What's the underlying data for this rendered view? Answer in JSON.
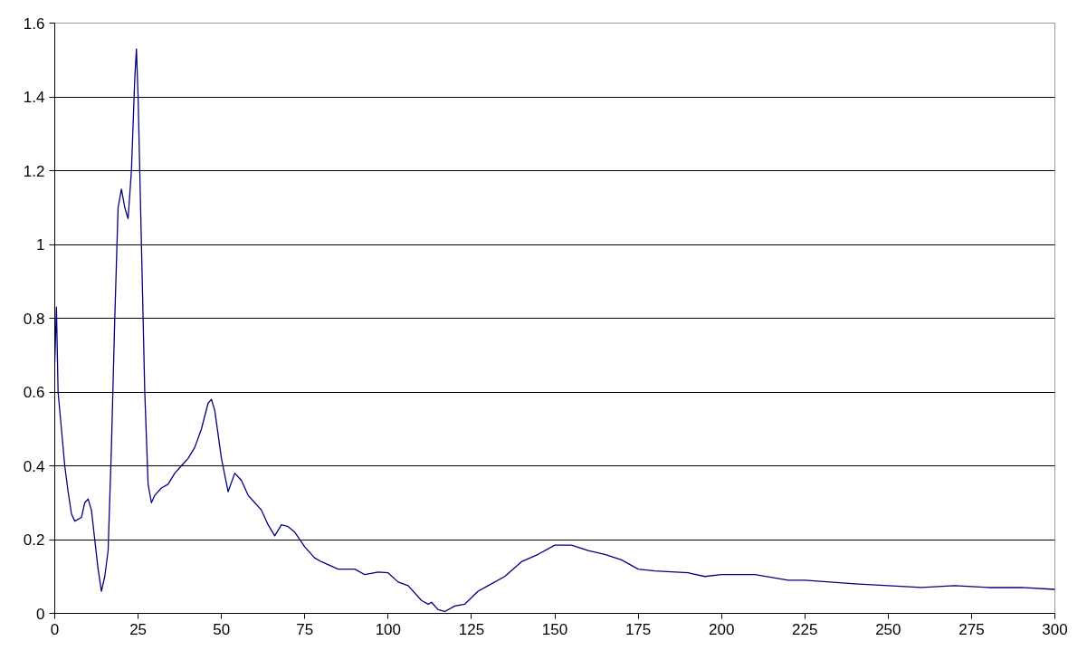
{
  "chart_data": {
    "type": "line",
    "x": [
      0,
      0.5,
      1,
      2,
      3,
      4,
      5,
      6,
      8,
      9,
      10,
      11,
      12,
      13,
      14,
      15,
      16,
      17,
      18,
      19,
      20,
      21,
      22,
      23,
      24,
      24.5,
      25,
      26,
      27,
      28,
      29,
      30,
      32,
      34,
      36,
      38,
      40,
      42,
      44,
      46,
      47,
      48,
      50,
      52,
      54,
      56,
      58,
      60,
      62,
      64,
      66,
      68,
      70,
      72,
      75,
      78,
      80,
      85,
      90,
      93,
      97,
      100,
      103,
      106,
      110,
      112,
      113,
      115,
      117,
      120,
      123,
      127,
      130,
      135,
      140,
      145,
      150,
      155,
      160,
      165,
      170,
      175,
      180,
      190,
      195,
      200,
      210,
      220,
      225,
      240,
      250,
      260,
      270,
      280,
      290,
      300
    ],
    "series": [
      {
        "color": "#000080",
        "values": [
          0.68,
          0.83,
          0.6,
          0.5,
          0.4,
          0.33,
          0.27,
          0.25,
          0.26,
          0.3,
          0.31,
          0.28,
          0.2,
          0.12,
          0.06,
          0.1,
          0.17,
          0.45,
          0.8,
          1.1,
          1.15,
          1.1,
          1.07,
          1.2,
          1.45,
          1.53,
          1.4,
          1.0,
          0.6,
          0.35,
          0.3,
          0.32,
          0.34,
          0.35,
          0.38,
          0.4,
          0.42,
          0.45,
          0.5,
          0.57,
          0.58,
          0.55,
          0.42,
          0.33,
          0.38,
          0.36,
          0.32,
          0.3,
          0.28,
          0.24,
          0.21,
          0.24,
          0.235,
          0.22,
          0.18,
          0.15,
          0.14,
          0.12,
          0.12,
          0.105,
          0.112,
          0.11,
          0.085,
          0.075,
          0.035,
          0.025,
          0.03,
          0.01,
          0.005,
          0.02,
          0.025,
          0.06,
          0.075,
          0.1,
          0.14,
          0.16,
          0.185,
          0.185,
          0.17,
          0.16,
          0.145,
          0.12,
          0.115,
          0.11,
          0.1,
          0.105,
          0.105,
          0.09,
          0.09,
          0.08,
          0.075,
          0.07,
          0.075,
          0.07,
          0.07,
          0.065
        ]
      }
    ],
    "xlim": [
      0,
      300
    ],
    "xticks": [
      0,
      25,
      50,
      75,
      100,
      125,
      150,
      175,
      200,
      225,
      250,
      275,
      300
    ],
    "ylim": [
      0,
      1.6
    ],
    "yticks": [
      0,
      0.2,
      0.4,
      0.6,
      0.8,
      1,
      1.2,
      1.4,
      1.6
    ],
    "grid": "y",
    "marker": "none",
    "line_style": "solid"
  }
}
